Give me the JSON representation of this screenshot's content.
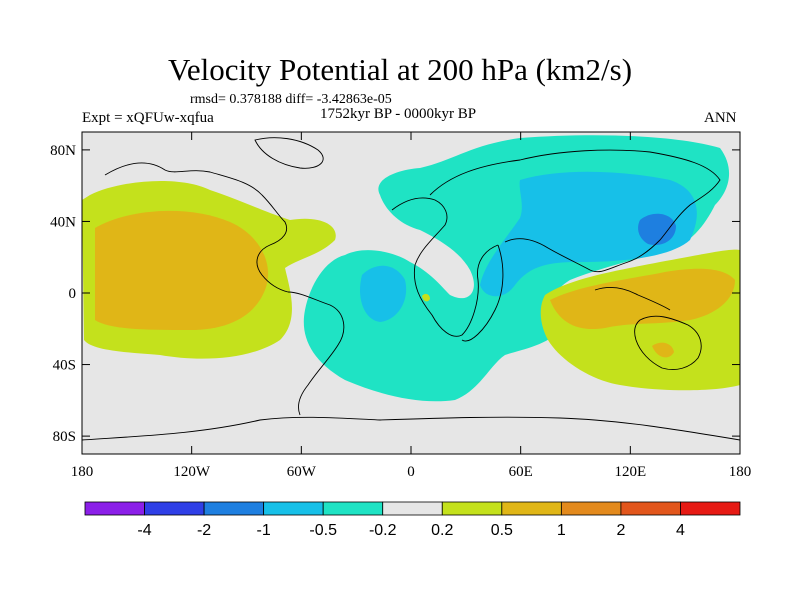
{
  "title": "Velocity Potential at 200 hPa (km2/s)",
  "stats": "rmsd= 0.378188 diff= -3.42863e-05",
  "experiment": "Expt = xQFUw-xqfua",
  "period": "1752kyr BP - 0000kyr BP",
  "season": "ANN",
  "map": {
    "lon_range": [
      -180,
      180
    ],
    "lat_range": [
      -90,
      90
    ],
    "lon_ticks": [
      {
        "value": -180,
        "label": "180"
      },
      {
        "value": -120,
        "label": "120W"
      },
      {
        "value": -60,
        "label": "60W"
      },
      {
        "value": 0,
        "label": "0"
      },
      {
        "value": 60,
        "label": "60E"
      },
      {
        "value": 120,
        "label": "120E"
      },
      {
        "value": 180,
        "label": "180"
      }
    ],
    "lat_ticks": [
      {
        "value": 80,
        "label": "80N"
      },
      {
        "value": 40,
        "label": "40N"
      },
      {
        "value": 0,
        "label": "0"
      },
      {
        "value": -40,
        "label": "40S"
      },
      {
        "value": -80,
        "label": "80S"
      }
    ]
  },
  "colorbar": {
    "colors": [
      "#8b1fe8",
      "#2f3fe6",
      "#1e7fe0",
      "#17c0e8",
      "#1fe3c4",
      "#e6e6e6",
      "#c4e11c",
      "#e0b617",
      "#e38a1d",
      "#e2561c",
      "#e61a14"
    ],
    "labels": [
      "-4",
      "-2",
      "-1",
      "-0.5",
      "-0.2",
      "0.2",
      "0.5",
      "1",
      "2",
      "4"
    ]
  }
}
